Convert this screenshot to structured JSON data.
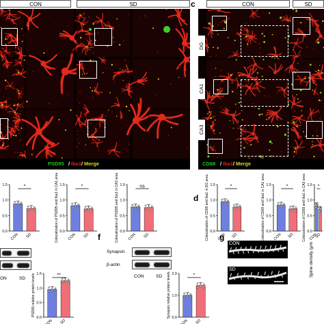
{
  "panel_labels": {
    "c": "c",
    "d": "d",
    "f": "f",
    "g": "g"
  },
  "left_figure": {
    "headers": {
      "con": "CON",
      "sd": "SD"
    },
    "legend": {
      "psd95": "PSD95",
      "iba1": "Iba1",
      "merge": "Merge"
    }
  },
  "right_figure": {
    "headers": {
      "con": "CON",
      "sd": "SD"
    },
    "rows": [
      "DG",
      "CA1",
      "CA3"
    ],
    "legend": {
      "cd68": "CD68",
      "iba1": "Iba1",
      "merge": "Merge"
    }
  },
  "colors": {
    "psd95": "#23c21a",
    "iba1": "#e0201a",
    "merge": "#e6d21a",
    "con_bar": "#6f7fe0",
    "sd_bar": "#f06e78"
  },
  "charts": [
    {
      "id": "psd95-dg",
      "ylabel": "",
      "ticks": [
        "0.0",
        "0.5",
        "1.0",
        "1.5"
      ],
      "categories": [
        "CON",
        "SD"
      ],
      "values": [
        0.88,
        0.73
      ],
      "significance": "*"
    },
    {
      "id": "psd95-ca1",
      "ylabel": "Colocalization of PSD95 and Iba1 in CA1 area",
      "ticks": [
        "0.0",
        "0.5",
        "1.0",
        "1.5"
      ],
      "categories": [
        "CON",
        "SD"
      ],
      "values": [
        0.82,
        0.72
      ],
      "significance": "*"
    },
    {
      "id": "psd95-ca3",
      "ylabel": "Colocalization of PSD95 and Iba1 in CA3 area",
      "ticks": [
        "0.0",
        "0.5",
        "1.0",
        "1.5"
      ],
      "categories": [
        "CON",
        "SD"
      ],
      "values": [
        0.78,
        0.76
      ],
      "significance": "ns"
    },
    {
      "id": "cd68-dg",
      "ylabel": "Colocalization of CD68 and Iba1 in DG area",
      "ticks": [
        "0.0",
        "0.5",
        "1.0",
        "1.5"
      ],
      "categories": [
        "CON",
        "SD"
      ],
      "values": [
        0.95,
        0.78
      ],
      "significance": "*"
    },
    {
      "id": "cd68-ca1",
      "ylabel": "Colocalization of CD68 and Iba1 in CA1 area",
      "ticks": [
        "0.0",
        "0.5",
        "1.0",
        "1.5"
      ],
      "categories": [
        "CON",
        "SD"
      ],
      "values": [
        0.84,
        0.72
      ],
      "significance": "*"
    },
    {
      "id": "cd68-ca3",
      "ylabel": "Colocalization of CD68 and Iba1 in CA3 area",
      "ticks": [
        "0.0",
        "0.5",
        "1.0",
        "1.5"
      ],
      "categories": [
        "CON",
        "SD"
      ],
      "values": [
        0.82,
        0.7
      ],
      "significance": "*"
    },
    {
      "id": "psd95-protein",
      "ylabel": "PSD95 relative protein levels",
      "ticks": [
        "0.0",
        "0.5",
        "1.0",
        "1.5"
      ],
      "categories": [
        "CON",
        "SD"
      ],
      "values": [
        0.95,
        1.25
      ],
      "significance": "**"
    },
    {
      "id": "synapsin-protein",
      "ylabel": "Synapsin relative protein levels",
      "ticks": [
        "0.0",
        "1.0",
        "2.0"
      ],
      "categories": [
        "CON",
        "SD"
      ],
      "values": [
        1.0,
        1.45
      ],
      "significance": "*"
    }
  ],
  "blot_e": {
    "lanes": {
      "con": "ON",
      "sd": "SD"
    }
  },
  "blot_f": {
    "rows": [
      "Synapsin",
      "β-actin"
    ],
    "lanes": {
      "con": "CON",
      "sd": "SD"
    }
  },
  "panel_g": {
    "labels": {
      "con": "CON",
      "sd": "SD"
    },
    "axis_label": "Spine density (μm"
  }
}
